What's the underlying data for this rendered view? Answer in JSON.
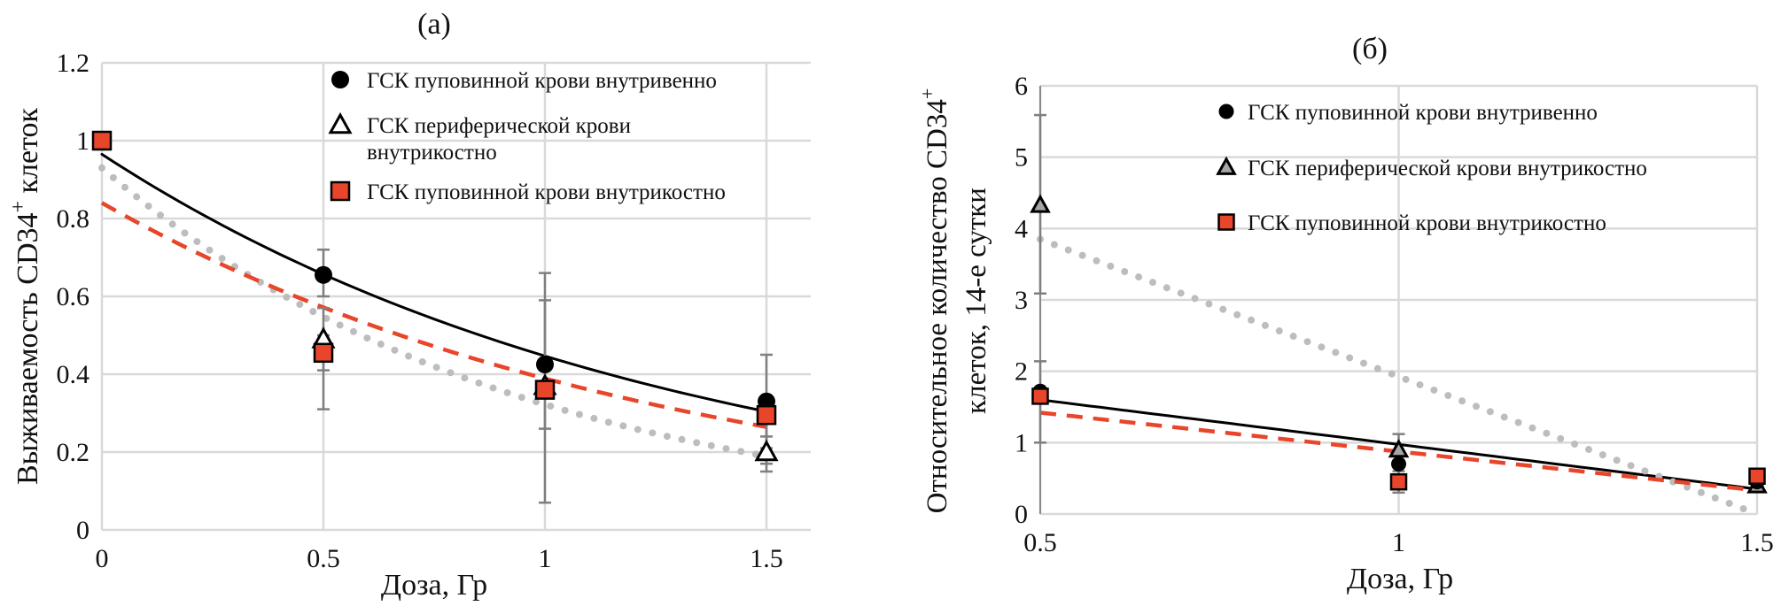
{
  "colors": {
    "black_series": "#000000",
    "gray_series": "#bdbdbd",
    "red_series": "#e8452a",
    "grid": "#d9d9d9",
    "errorbar": "#7f7f7f"
  },
  "chart_data": [
    {
      "type": "scatter",
      "title": "(а)",
      "xlabel": "Доза, Гр",
      "ylabel": "Выживаемость CD34",
      "ylabel_sup": "+",
      "ylabel_tail": " клеток",
      "xlim": [
        0,
        1.5
      ],
      "ylim": [
        0,
        1.2
      ],
      "xticks": [
        "0",
        "0.5",
        "1",
        "1.5"
      ],
      "yticks": [
        "0",
        "0.2",
        "0.4",
        "0.6",
        "0.8",
        "1",
        "1.2"
      ],
      "grid": true,
      "legend_position": "top-right",
      "series": [
        {
          "name": "ГСК пуповинной крови внутривенно",
          "marker": "circle",
          "x": [
            0.5,
            1,
            1.5
          ],
          "y": [
            0.655,
            0.425,
            0.33
          ],
          "err_low": [
            0.6,
            0.26,
            0.21
          ],
          "err_high": [
            0.72,
            0.59,
            0.45
          ],
          "trend": {
            "kind": "exponential",
            "a": 0.965,
            "b": -0.77,
            "style": "solid"
          }
        },
        {
          "name_lines": [
            "ГСК периферической крови",
            "внутрикостно"
          ],
          "marker": "triangle-open",
          "x": [
            0.5,
            1,
            1.5
          ],
          "y": [
            0.49,
            0.37,
            0.2
          ],
          "err_low": [
            0.31,
            0.07,
            0.15
          ],
          "err_high": [
            0.57,
            0.66,
            0.24
          ],
          "trend": {
            "kind": "exponential",
            "a": 0.93,
            "b": -1.06,
            "style": "dotted"
          }
        },
        {
          "name": "ГСК пуповинной крови внутрикостно",
          "marker": "square",
          "x": [
            0,
            0.5,
            1,
            1.5
          ],
          "y": [
            1.0,
            0.455,
            0.36,
            0.295
          ],
          "err_low": [
            1.0,
            0.41,
            0.34,
            0.17
          ],
          "err_high": [
            1.0,
            0.5,
            0.38,
            0.33
          ],
          "trend": {
            "kind": "exponential",
            "a": 0.84,
            "b": -0.77,
            "style": "dashed"
          }
        }
      ]
    },
    {
      "type": "scatter",
      "title": "(б)",
      "xlabel": "Доза, Гр",
      "ylabel_line1": "Относительное количество CD34",
      "ylabel_sup": "+",
      "ylabel_line2": "клеток, 14-е сутки",
      "xlim": [
        0.5,
        1.5
      ],
      "ylim": [
        0,
        6
      ],
      "xticks": [
        "0.5",
        "1",
        "1.5"
      ],
      "yticks": [
        "0",
        "1",
        "2",
        "3",
        "4",
        "5",
        "6"
      ],
      "grid": true,
      "legend_position": "top-right",
      "series": [
        {
          "name": "ГСК пуповинной крови внутривенно",
          "marker": "circle-small",
          "x": [
            0.5,
            1,
            1.5
          ],
          "y": [
            1.72,
            0.7,
            0.45
          ],
          "err_low": [
            1.0,
            0.55,
            0.35
          ],
          "err_high": [
            2.14,
            0.85,
            0.55
          ],
          "trend": {
            "kind": "linear",
            "y0": 1.6,
            "y1": 0.35,
            "style": "solid"
          }
        },
        {
          "name": "ГСК периферической крови внутрикостно",
          "marker": "triangle-gray",
          "x": [
            0.5,
            1,
            1.5
          ],
          "y": [
            4.33,
            0.9,
            0.4
          ],
          "err_low": [
            3.09,
            0.75,
            0.35
          ],
          "err_high": [
            5.59,
            1.12,
            0.6
          ],
          "trend": {
            "kind": "linear",
            "y0": 3.85,
            "y1": 0.0,
            "style": "dotted"
          }
        },
        {
          "name": "ГСК пуповинной крови внутрикостно",
          "marker": "square-small",
          "x": [
            0.5,
            1,
            1.5
          ],
          "y": [
            1.65,
            0.45,
            0.53
          ],
          "err_low": [
            1.6,
            0.3,
            0.45
          ],
          "err_high": [
            1.7,
            0.6,
            0.6
          ],
          "trend": {
            "kind": "linear",
            "y0": 1.42,
            "y1": 0.33,
            "style": "dashed"
          }
        }
      ]
    }
  ]
}
